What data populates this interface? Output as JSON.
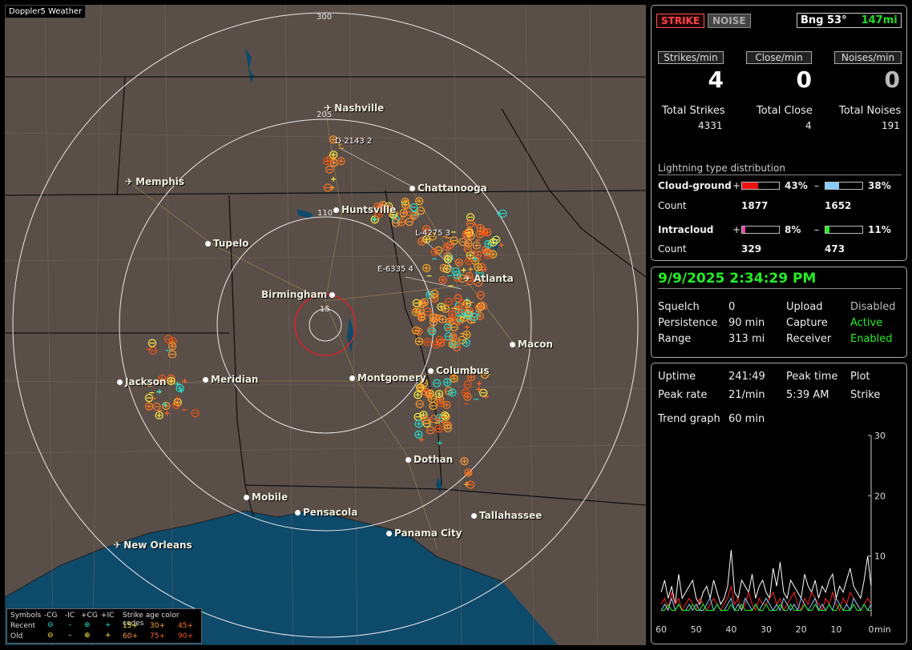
{
  "app_title": "Doppler5 Weather",
  "map": {
    "ring_labels": [
      "300",
      "205",
      "110",
      "15"
    ],
    "station_labels": [
      "D-2143 2",
      "L-4275 3",
      "E-6335 4"
    ],
    "cities": [
      {
        "name": "Nashville",
        "icon": "plane"
      },
      {
        "name": "Chattanooga",
        "icon": "dot"
      },
      {
        "name": "Memphis",
        "icon": "plane"
      },
      {
        "name": "Huntsville",
        "icon": "dot"
      },
      {
        "name": "Tupelo",
        "icon": "dot"
      },
      {
        "name": "Atlanta",
        "icon": "plane"
      },
      {
        "name": "Birmingham",
        "icon": "dot"
      },
      {
        "name": "Macon",
        "icon": "dot"
      },
      {
        "name": "Columbus",
        "icon": "dot"
      },
      {
        "name": "Jackson",
        "icon": "dot"
      },
      {
        "name": "Meridian",
        "icon": "dot"
      },
      {
        "name": "Montgomery",
        "icon": "dot"
      },
      {
        "name": "Dothan",
        "icon": "dot"
      },
      {
        "name": "Mobile",
        "icon": "dot"
      },
      {
        "name": "Pensacola",
        "icon": "dot"
      },
      {
        "name": "Tallahassee",
        "icon": "dot"
      },
      {
        "name": "Panama City",
        "icon": "dot"
      },
      {
        "name": "New Orleans",
        "icon": "plane"
      }
    ],
    "colors": {
      "land": "#5a4e48",
      "water": "#0e4a6a",
      "ring": "#e8e8e8",
      "close_ring": "#dd2222",
      "border": "#111111"
    }
  },
  "legend": {
    "symbols_label": "Symbols",
    "headers": [
      "-CG",
      "-IC",
      "+CG",
      "+IC"
    ],
    "recent_label": "Recent",
    "old_label": "Old",
    "age_title": "Strike age color codes",
    "recent_ages": [
      "15+",
      "30+",
      "45+"
    ],
    "old_ages": [
      "60+",
      "75+",
      "90+"
    ],
    "age_colors": [
      "#ffee44",
      "#ffaa22",
      "#ff7722",
      "#ff9933",
      "#ff6622",
      "#ee5511"
    ]
  },
  "status": {
    "strike_label": "STRIKE",
    "noise_label": "NOISE",
    "bearing": "Bng 53°",
    "range": "147mi",
    "headers": [
      "Strikes/min",
      "Close/min",
      "Noises/min"
    ],
    "strikes_min": "4",
    "close_min": "0",
    "noises_min": "0",
    "total_labels": [
      "Total Strikes",
      "Total Close",
      "Total Noises"
    ],
    "total_strikes": "4331",
    "total_close": "4",
    "total_noises": "191"
  },
  "distribution": {
    "title": "Lightning type distribution",
    "cloud_ground_label": "Cloud-ground",
    "intracloud_label": "Intracloud",
    "count_label": "Count",
    "plus": "+",
    "minus": "–",
    "cg_pos_pct": "43%",
    "cg_pos_value": 0.43,
    "cg_pos_color": "#ee1111",
    "cg_neg_pct": "38%",
    "cg_neg_value": 0.38,
    "cg_neg_color": "#88ccff",
    "cg_pos_count": "1877",
    "cg_neg_count": "1652",
    "ic_pos_pct": "8%",
    "ic_pos_value": 0.08,
    "ic_pos_color": "#ee44aa",
    "ic_neg_pct": "11%",
    "ic_neg_value": 0.11,
    "ic_neg_color": "#22ee22",
    "ic_pos_count": "329",
    "ic_neg_count": "473"
  },
  "settings": {
    "datetime": "9/9/2025 2:34:29 PM",
    "squelch_label": "Squelch",
    "squelch": "0",
    "persistence_label": "Persistence",
    "persistence": "90 min",
    "range_label": "Range",
    "range": "313 mi",
    "upload_label": "Upload",
    "upload": "Disabled",
    "capture_label": "Capture",
    "capture": "Active",
    "receiver_label": "Receiver",
    "receiver": "Enabled"
  },
  "stats": {
    "uptime_label": "Uptime",
    "uptime": "241:49",
    "peak_time_label": "Peak time",
    "peak_time": "5:39 AM",
    "plot_label": "Plot",
    "plot": "Strike",
    "peak_rate_label": "Peak rate",
    "peak_rate": "21/min",
    "trend_label": "Trend graph",
    "trend_span": "60 min",
    "y_ticks": [
      "30",
      "20",
      "10"
    ],
    "x_ticks": [
      "60",
      "50",
      "40",
      "30",
      "20",
      "10",
      "0"
    ],
    "x_unit": "min"
  },
  "chart_data": {
    "type": "line",
    "x": [
      60,
      59,
      58,
      57,
      56,
      55,
      54,
      53,
      52,
      51,
      50,
      49,
      48,
      47,
      46,
      45,
      44,
      43,
      42,
      41,
      40,
      39,
      38,
      37,
      36,
      35,
      34,
      33,
      32,
      31,
      30,
      29,
      28,
      27,
      26,
      25,
      24,
      23,
      22,
      21,
      20,
      19,
      18,
      17,
      16,
      15,
      14,
      13,
      12,
      11,
      10,
      9,
      8,
      7,
      6,
      5,
      4,
      3,
      2,
      1,
      0
    ],
    "ylim": [
      0,
      30
    ],
    "series": [
      {
        "color": "#ffffff",
        "values": [
          4,
          6,
          3,
          5,
          2,
          7,
          3,
          4,
          5,
          6,
          3,
          2,
          4,
          5,
          3,
          6,
          4,
          2,
          3,
          5,
          11,
          4,
          3,
          6,
          5,
          4,
          7,
          3,
          5,
          6,
          4,
          3,
          8,
          5,
          9,
          4,
          3,
          6,
          5,
          4,
          3,
          7,
          5,
          4,
          6,
          3,
          5,
          4,
          6,
          7,
          3,
          5,
          4,
          6,
          8,
          5,
          4,
          3,
          6,
          10,
          5
        ]
      },
      {
        "color": "#ff2222",
        "values": [
          2,
          3,
          1,
          4,
          2,
          3,
          1,
          2,
          3,
          2,
          1,
          3,
          2,
          1,
          2,
          3,
          2,
          1,
          2,
          3,
          5,
          2,
          3,
          1,
          2,
          4,
          2,
          1,
          3,
          2,
          2,
          3,
          4,
          2,
          3,
          1,
          2,
          3,
          4,
          2,
          1,
          3,
          2,
          4,
          3,
          2,
          1,
          3,
          2,
          4,
          2,
          1,
          3,
          2,
          4,
          3,
          2,
          1,
          2,
          3,
          2
        ]
      },
      {
        "color": "#88ccff",
        "values": [
          1,
          2,
          1,
          3,
          1,
          2,
          1,
          1,
          2,
          1,
          2,
          1,
          1,
          2,
          3,
          1,
          2,
          1,
          1,
          2,
          3,
          1,
          2,
          1,
          3,
          2,
          1,
          2,
          1,
          2,
          3,
          2,
          1,
          2,
          1,
          3,
          2,
          1,
          2,
          1,
          3,
          2,
          1,
          2,
          3,
          1,
          2,
          1,
          2,
          1,
          3,
          2,
          1,
          2,
          1,
          3,
          2,
          1,
          2,
          1,
          2
        ]
      },
      {
        "color": "#22ee22",
        "values": [
          1,
          1,
          2,
          1,
          1,
          2,
          1,
          1,
          1,
          2,
          1,
          1,
          2,
          1,
          1,
          1,
          2,
          1,
          1,
          1,
          2,
          1,
          1,
          2,
          1,
          1,
          1,
          2,
          1,
          1,
          2,
          1,
          1,
          1,
          2,
          1,
          1,
          2,
          1,
          1,
          1,
          2,
          1,
          1,
          2,
          1,
          1,
          1,
          2,
          1,
          1,
          2,
          1,
          1,
          1,
          2,
          1,
          1,
          2,
          1,
          1
        ]
      }
    ]
  }
}
